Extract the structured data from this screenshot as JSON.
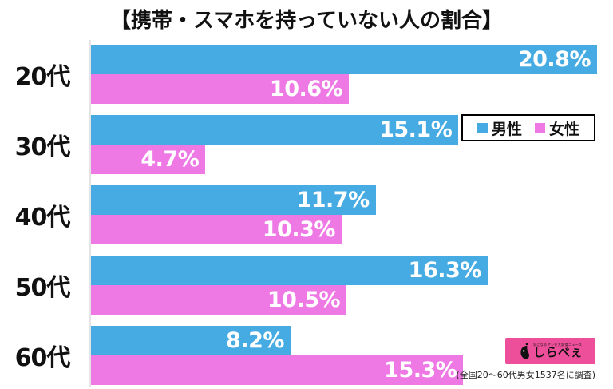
{
  "title": "【携帯・スマホを持っていない人の割合】",
  "colors": {
    "male": "#46abe2",
    "female": "#ee79e5",
    "logo_pink": "#ee4f9a",
    "axis_line": "#e4e4e4",
    "value_label": "#ffffff",
    "text": "#111111"
  },
  "chart_data": {
    "type": "bar",
    "orientation": "horizontal",
    "title": "【携帯・スマホを持っていない人の割合】",
    "categories": [
      "20代",
      "30代",
      "40代",
      "50代",
      "60代"
    ],
    "series": [
      {
        "name": "男性",
        "color": "#46abe2",
        "values": [
          20.8,
          15.1,
          11.7,
          16.3,
          8.2
        ]
      },
      {
        "name": "女性",
        "color": "#ee79e5",
        "values": [
          10.6,
          4.7,
          10.3,
          10.5,
          15.3
        ]
      }
    ],
    "value_suffix": "%",
    "xlim": [
      0,
      20.8
    ],
    "plot_max": 20.8,
    "grid": false,
    "legend_position": "top-right",
    "value_labels": "inside-end"
  },
  "legend": {
    "male_label": "男性",
    "female_label": "女性"
  },
  "footer": {
    "logo_name": "しらべぇ",
    "logo_tagline": "気になるアレを大調査ニュース",
    "source_note": "(全国20〜60代男女1537名に調査)"
  }
}
